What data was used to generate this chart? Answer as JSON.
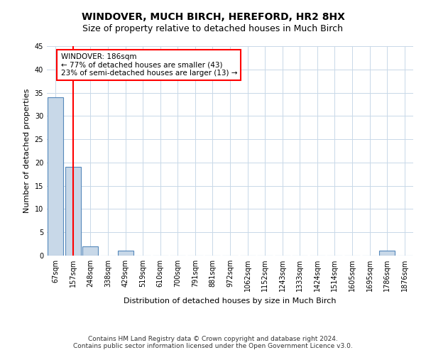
{
  "title": "WINDOVER, MUCH BIRCH, HEREFORD, HR2 8HX",
  "subtitle": "Size of property relative to detached houses in Much Birch",
  "xlabel": "Distribution of detached houses by size in Much Birch",
  "ylabel": "Number of detached properties",
  "categories": [
    "67sqm",
    "157sqm",
    "248sqm",
    "338sqm",
    "429sqm",
    "519sqm",
    "610sqm",
    "700sqm",
    "791sqm",
    "881sqm",
    "972sqm",
    "1062sqm",
    "1152sqm",
    "1243sqm",
    "1333sqm",
    "1424sqm",
    "1514sqm",
    "1605sqm",
    "1695sqm",
    "1786sqm",
    "1876sqm"
  ],
  "values": [
    34,
    19,
    2,
    0,
    1,
    0,
    0,
    0,
    0,
    0,
    0,
    0,
    0,
    0,
    0,
    0,
    0,
    0,
    0,
    1,
    0
  ],
  "bar_color": "#c8d8e8",
  "bar_edge_color": "#5588bb",
  "redline_x": 1.0,
  "annotation_title": "WINDOVER: 186sqm",
  "annotation_line1": "← 77% of detached houses are smaller (43)",
  "annotation_line2": "23% of semi-detached houses are larger (13) →",
  "ylim": [
    0,
    45
  ],
  "yticks": [
    0,
    5,
    10,
    15,
    20,
    25,
    30,
    35,
    40,
    45
  ],
  "footer_line1": "Contains HM Land Registry data © Crown copyright and database right 2024.",
  "footer_line2": "Contains public sector information licensed under the Open Government Licence v3.0.",
  "title_fontsize": 10,
  "subtitle_fontsize": 9,
  "axis_label_fontsize": 8,
  "tick_fontsize": 7,
  "annotation_fontsize": 7.5,
  "footer_fontsize": 6.5
}
